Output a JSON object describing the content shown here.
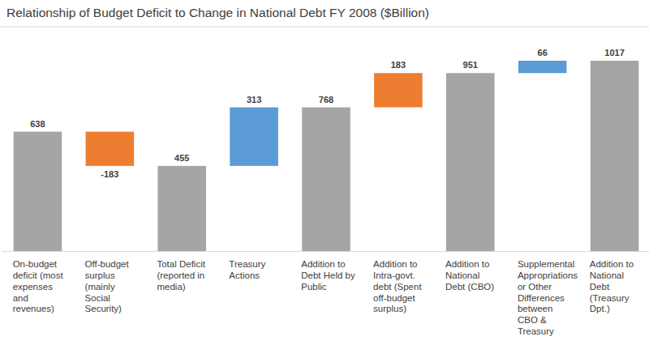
{
  "chart_data": {
    "type": "waterfall",
    "title": "Relationship of Budget Deficit to Change in National Debt FY 2008 ($Billion)",
    "categories": [
      "On-budget deficit (most expenses and revenues)",
      "Off-budget surplus (mainly Social Security)",
      "Total Deficit (reported in media)",
      "Treasury Actions",
      "Addition to Debt Held by Public",
      "Addition to Intra-govt. debt (Spent off-budget surplus)",
      "Addition to National Debt (CBO)",
      "Supplemental Appropriations or Other Differences between CBO & Treasury",
      "Addition to National Debt (Treasury Dpt.)"
    ],
    "values": [
      638,
      -183,
      455,
      313,
      768,
      183,
      951,
      66,
      1017
    ],
    "colors": [
      "#a5a5a5",
      "#ed7d31",
      "#a5a5a5",
      "#5b9bd5",
      "#a5a5a5",
      "#ed7d31",
      "#a5a5a5",
      "#5b9bd5",
      "#a5a5a5"
    ],
    "data_labels": true,
    "tick_labels": "x",
    "grid": false
  }
}
